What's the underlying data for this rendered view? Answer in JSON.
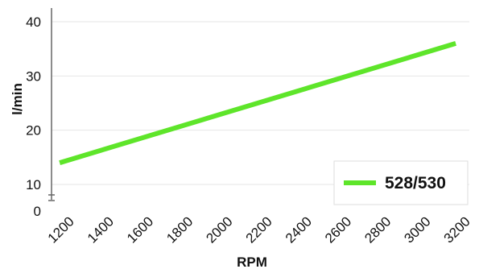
{
  "chart_data": {
    "type": "line",
    "title": "",
    "xlabel": "RPM",
    "ylabel": "l/min",
    "x": [
      1180,
      3180
    ],
    "series": [
      {
        "name": "528/530",
        "color": "#5ee52a",
        "values": [
          14,
          36
        ]
      }
    ],
    "xticks": [
      1200,
      1400,
      1600,
      1800,
      2000,
      2200,
      2400,
      2600,
      2800,
      3000,
      3200
    ],
    "yticks": [
      0,
      10,
      20,
      30,
      40
    ],
    "xlim": [
      1150,
      3200
    ],
    "ylim": [
      0,
      42
    ],
    "grid": "horizontal",
    "legend_position": "bottom-right"
  }
}
